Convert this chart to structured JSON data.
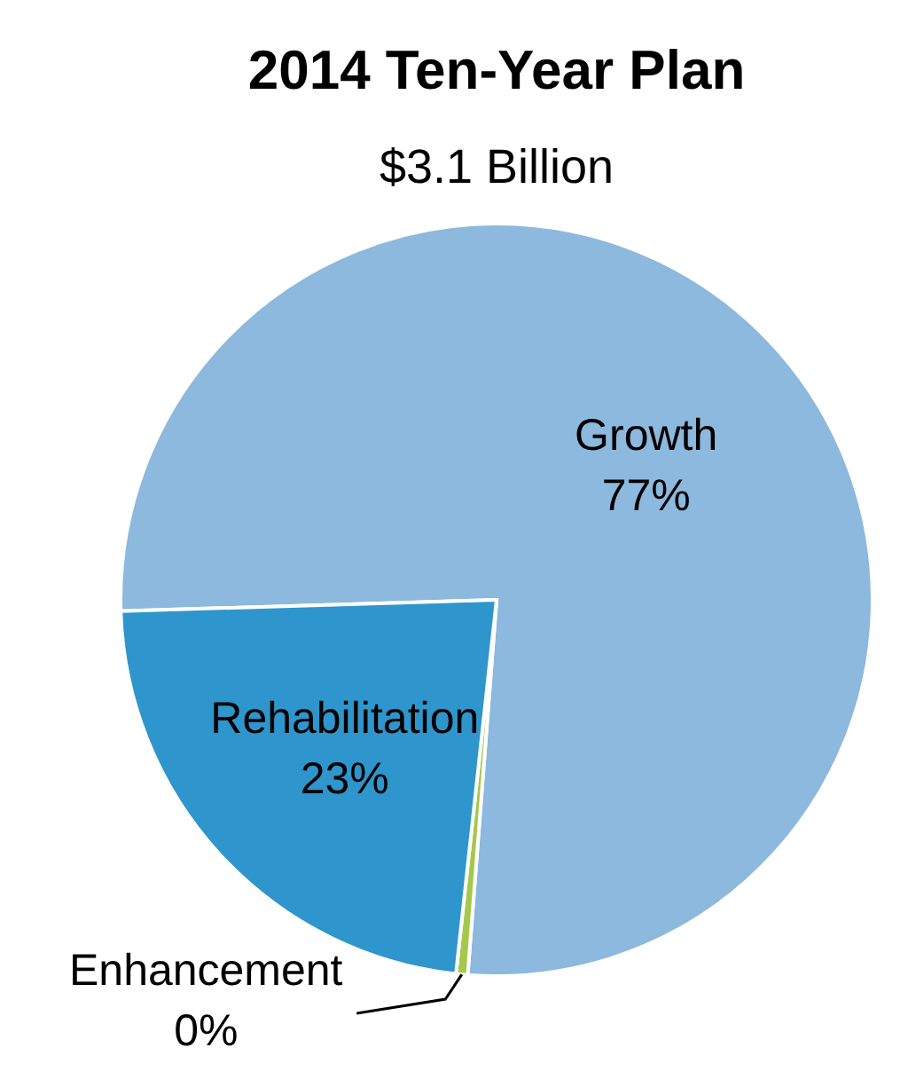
{
  "chart_data": {
    "type": "pie",
    "title": "2014 Ten-Year Plan",
    "subtitle": "$3.1 Billion",
    "categories": [
      "Growth",
      "Enhancement",
      "Rehabilitation"
    ],
    "values": [
      76.7,
      0.5,
      22.8
    ],
    "colors": [
      "#8cb9dd",
      "#a6c84a",
      "#2e96cc"
    ],
    "value_labels": [
      "77%",
      "0%",
      "23%"
    ],
    "legend": false
  }
}
